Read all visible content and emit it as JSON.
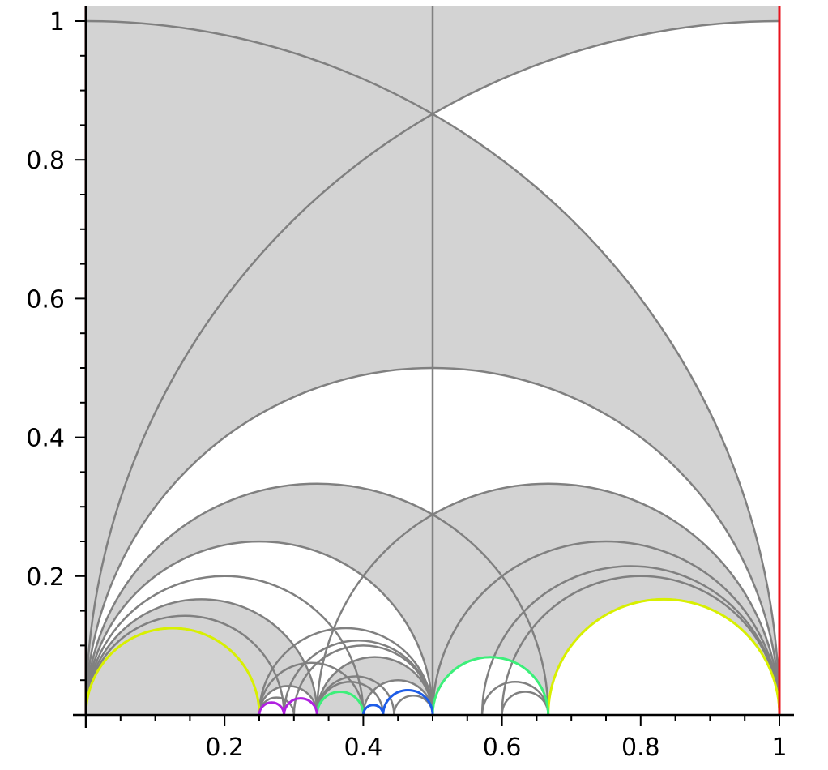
{
  "axes": {
    "x_ticks": [
      {
        "value": 0.2,
        "label": "0.2"
      },
      {
        "value": 0.4,
        "label": "0.4"
      },
      {
        "value": 0.6,
        "label": "0.6"
      },
      {
        "value": 0.8,
        "label": "0.8"
      },
      {
        "value": 1.0,
        "label": "1"
      }
    ],
    "y_ticks": [
      {
        "value": 0.2,
        "label": "0.2"
      },
      {
        "value": 0.4,
        "label": "0.4"
      },
      {
        "value": 0.6,
        "label": "0.6"
      },
      {
        "value": 0.8,
        "label": "0.8"
      },
      {
        "value": 1.0,
        "label": "1"
      }
    ],
    "x_range": [
      0,
      1
    ],
    "y_range": [
      0,
      1
    ]
  },
  "colors": {
    "fill": "#d3d3d3",
    "stroke": "#808080",
    "edge_right": "#e8131d",
    "edge_left": "#4a0000",
    "highlight_yellow": "#d8f000",
    "highlight_green": "#3cf07a",
    "highlight_blue": "#1e5de8",
    "highlight_purple": "#b020e0"
  },
  "diagram": {
    "geodesics": [
      {
        "a": 0,
        "b": 2
      },
      {
        "a": -1,
        "b": 1
      },
      {
        "a": 0,
        "b": 1
      },
      {
        "a": 0,
        "b": 0.6667
      },
      {
        "a": 0,
        "b": 0.5
      },
      {
        "a": 0,
        "b": 0.4
      },
      {
        "a": 0,
        "b": 0.3333
      },
      {
        "a": 0,
        "b": 0.2857
      },
      {
        "a": 0,
        "b": 0.25
      },
      {
        "a": 0.3333,
        "b": 1
      },
      {
        "a": 0.5,
        "b": 1
      },
      {
        "a": 0.5714,
        "b": 1
      },
      {
        "a": 0.6,
        "b": 1
      },
      {
        "a": 0.6667,
        "b": 1
      },
      {
        "a": 0.25,
        "b": 0.5
      },
      {
        "a": 0.2857,
        "b": 0.5
      },
      {
        "a": 0.3,
        "b": 0.5
      },
      {
        "a": 0.3333,
        "b": 0.5
      },
      {
        "a": 0.4,
        "b": 0.5
      },
      {
        "a": 0.25,
        "b": 0.4
      },
      {
        "a": 0.25,
        "b": 0.3333
      },
      {
        "a": 0.25,
        "b": 0.2857
      },
      {
        "a": 0.3333,
        "b": 0.4
      },
      {
        "a": 0.3333,
        "b": 0.4286
      },
      {
        "a": 0.3333,
        "b": 0.4444
      },
      {
        "a": 0.4,
        "b": 0.4286
      },
      {
        "a": 0.4286,
        "b": 0.5
      },
      {
        "a": 0.4444,
        "b": 0.5
      },
      {
        "a": 0.5,
        "b": 0.6667
      },
      {
        "a": 0.5714,
        "b": 0.6667
      },
      {
        "a": 0.6,
        "b": 0.6667
      },
      {
        "a": 0.25,
        "b": 0.3
      },
      {
        "a": 0.2857,
        "b": 0.3333
      }
    ],
    "vertical_lines": [
      0.5
    ],
    "shaded_regions": [
      {
        "kind": "strip",
        "x0": 0,
        "x1": 0.5,
        "bottom_arcs": [
          [
            -1,
            1
          ]
        ],
        "top": 1
      },
      {
        "kind": "strip",
        "x0": 0.5,
        "x1": 1,
        "bottom_arcs": [
          [
            0,
            2
          ]
        ],
        "top": 1
      }
    ],
    "highlight_arcs": [
      {
        "a": 0,
        "b": 0.25,
        "color": "highlight_yellow"
      },
      {
        "a": 0.6667,
        "b": 1,
        "color": "highlight_yellow"
      },
      {
        "a": 0.5,
        "b": 0.6667,
        "color": "highlight_green"
      },
      {
        "a": 0.3333,
        "b": 0.4,
        "color": "highlight_green"
      },
      {
        "a": 0.4286,
        "b": 0.5,
        "color": "highlight_blue"
      },
      {
        "a": 0.4,
        "b": 0.4286,
        "color": "highlight_blue"
      },
      {
        "a": 0.25,
        "b": 0.2857,
        "color": "highlight_purple"
      },
      {
        "a": 0.2857,
        "b": 0.3333,
        "color": "highlight_purple"
      }
    ]
  }
}
